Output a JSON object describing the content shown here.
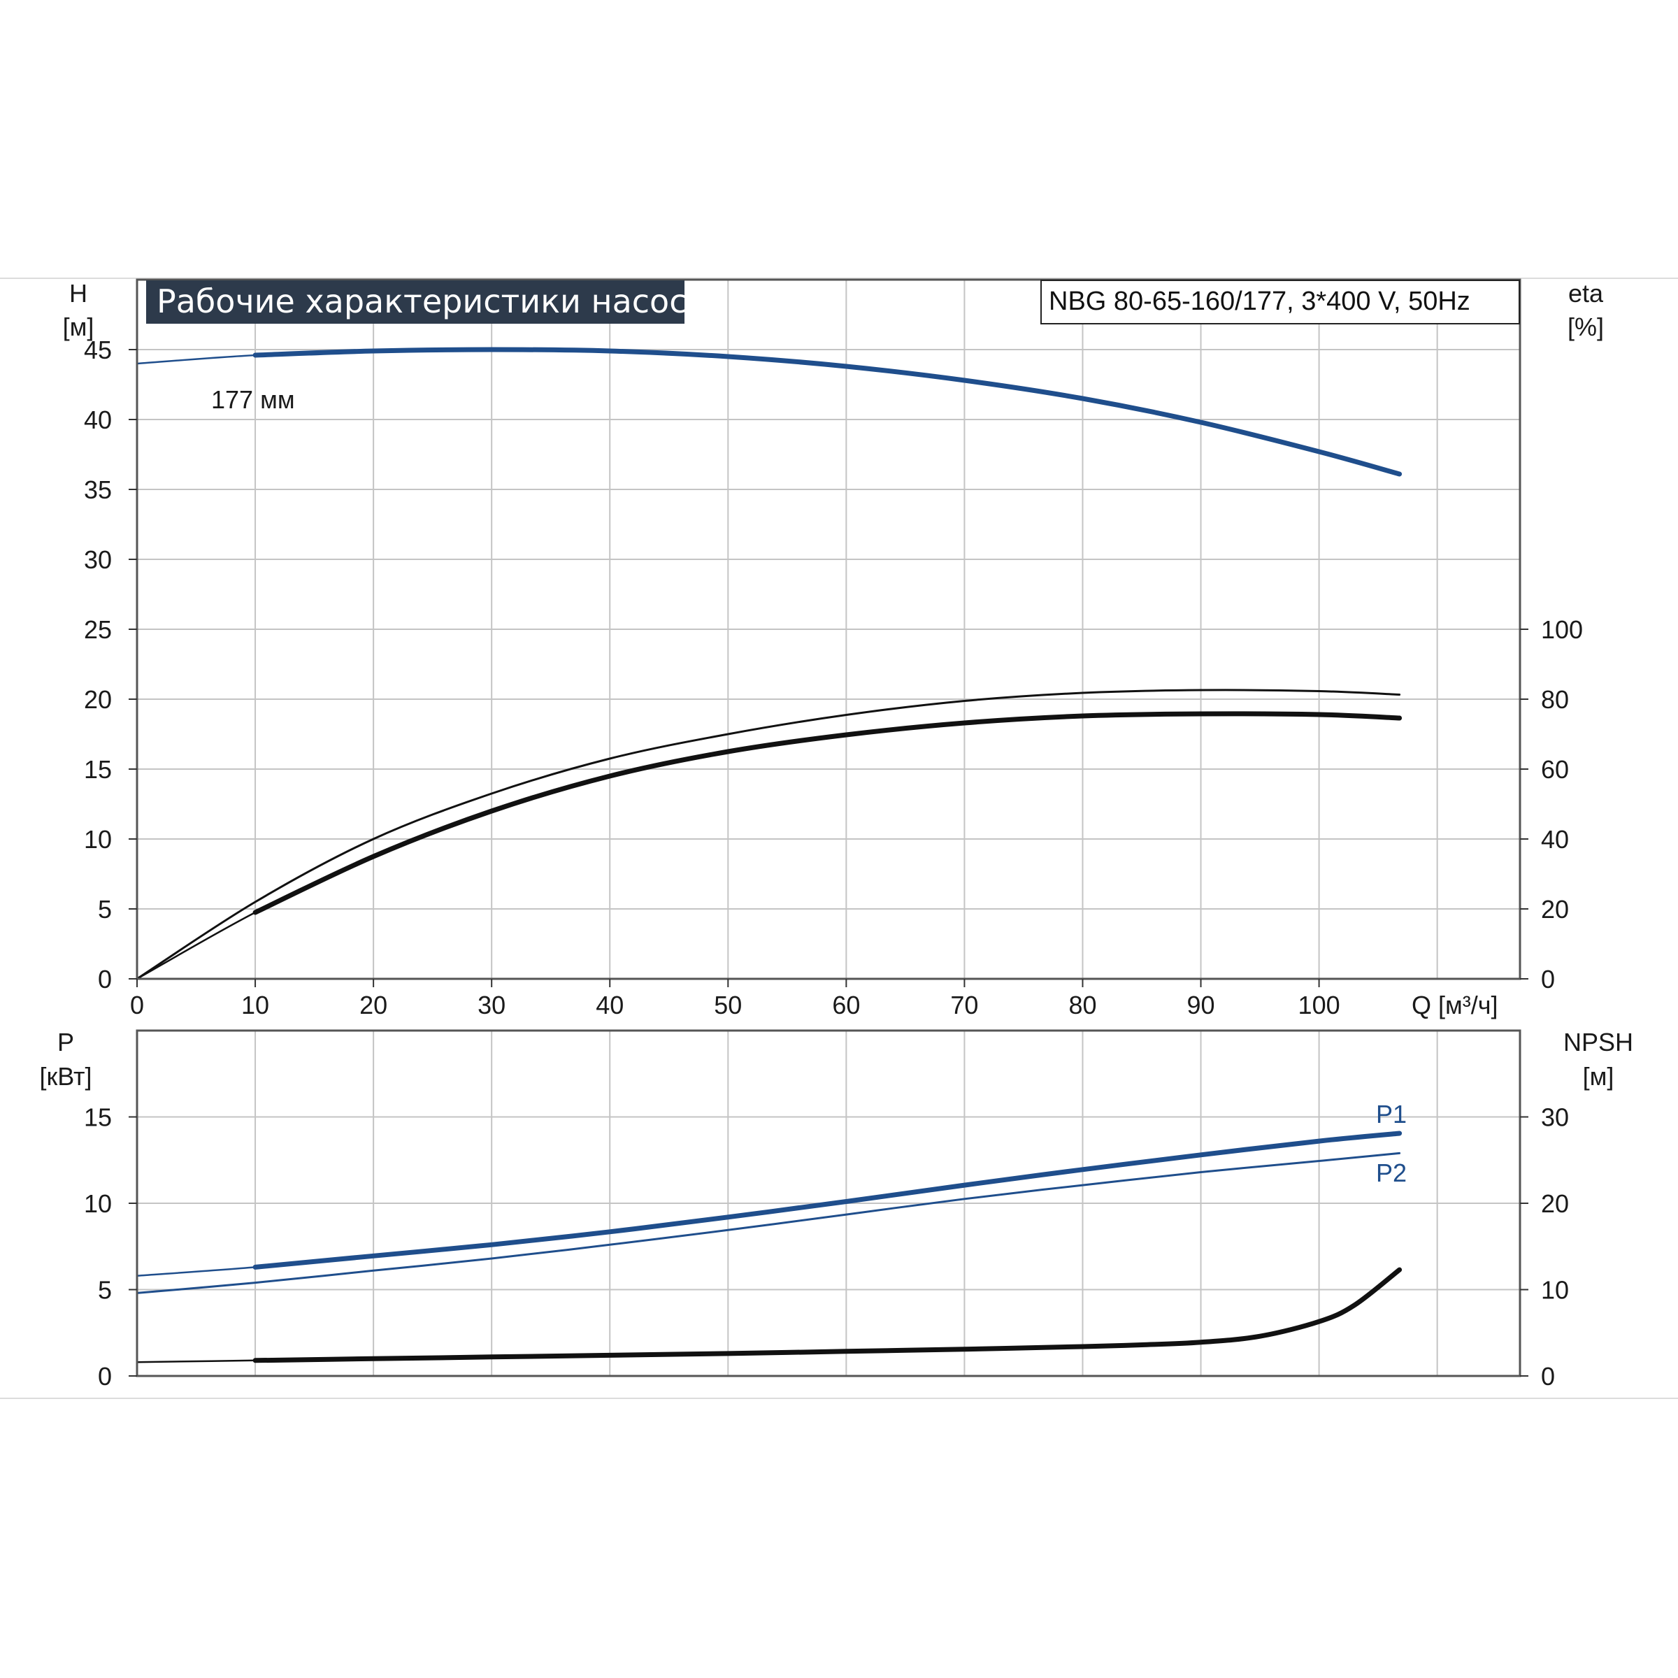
{
  "chart_data": [
    {
      "type": "line",
      "title": "Рабочие характеристики насоса",
      "model": "NBG 80-65-160/177, 3*400 V, 50Hz",
      "xlabel": "Q [м³/ч]",
      "xticks": [
        "0",
        "10",
        "20",
        "30",
        "40",
        "50",
        "60",
        "70",
        "80",
        "90",
        "100"
      ],
      "xlim": [
        0,
        117
      ],
      "ylabel_left": [
        "H",
        "[м]"
      ],
      "yticks_left": [
        "0",
        "5",
        "10",
        "15",
        "20",
        "25",
        "30",
        "35",
        "40",
        "45"
      ],
      "ylim_left": [
        0,
        50
      ],
      "ylabel_right": [
        "eta",
        "[%]"
      ],
      "yticks_right": [
        "0",
        "20",
        "40",
        "60",
        "80",
        "100"
      ],
      "ylim_right": [
        0,
        200
      ],
      "grid": true,
      "annotation": "177 мм",
      "series": [
        {
          "name": "",
          "axis": "left",
          "color": "#1f4e8c",
          "x": [
            0,
            10,
            20,
            30,
            40,
            50,
            60,
            70,
            80,
            90,
            100,
            106.8
          ],
          "y": [
            44.0,
            44.6,
            44.9,
            45.0,
            44.9,
            44.5,
            43.8,
            42.8,
            41.5,
            39.8,
            37.7,
            36.1
          ],
          "solid_from": 10
        },
        {
          "name": "",
          "axis": "right",
          "color": "#111111",
          "x": [
            0,
            10,
            20,
            30,
            40,
            50,
            60,
            70,
            80,
            90,
            100,
            106.8
          ],
          "y": [
            0,
            22,
            40,
            53,
            63,
            70,
            75.5,
            79.5,
            81.8,
            82.6,
            82.3,
            81.3
          ],
          "style": "thin"
        },
        {
          "name": "",
          "axis": "right",
          "color": "#111111",
          "x": [
            0,
            10,
            20,
            30,
            40,
            50,
            60,
            70,
            80,
            90,
            100,
            106.8
          ],
          "y": [
            0,
            19,
            35,
            48,
            58,
            65,
            69.8,
            73.2,
            75.2,
            75.8,
            75.6,
            74.6
          ],
          "solid_from": 10
        }
      ]
    },
    {
      "type": "line",
      "ylabel_left": [
        "P",
        "[кВт]"
      ],
      "yticks_left": [
        "0",
        "5",
        "10",
        "15"
      ],
      "ylim_left": [
        0,
        20
      ],
      "ylabel_right": [
        "NPSH",
        "[м]"
      ],
      "yticks_right": [
        "0",
        "10",
        "20",
        "30"
      ],
      "ylim_right": [
        0,
        40
      ],
      "xlim": [
        0,
        117
      ],
      "grid": true,
      "series": [
        {
          "name": "P1",
          "axis": "left",
          "color": "#1f4e8c",
          "x": [
            0,
            10,
            20,
            30,
            40,
            50,
            60,
            70,
            80,
            90,
            100,
            106.8
          ],
          "y": [
            5.8,
            6.3,
            6.95,
            7.6,
            8.35,
            9.2,
            10.1,
            11.05,
            11.95,
            12.8,
            13.6,
            14.05
          ],
          "solid_from": 10
        },
        {
          "name": "P2",
          "axis": "left",
          "color": "#1f4e8c",
          "x": [
            0,
            10,
            20,
            30,
            40,
            50,
            60,
            70,
            80,
            90,
            100,
            106.8
          ],
          "y": [
            4.8,
            5.4,
            6.1,
            6.8,
            7.6,
            8.45,
            9.35,
            10.25,
            11.05,
            11.8,
            12.45,
            12.9
          ],
          "style": "thin"
        },
        {
          "name": "",
          "axis": "right",
          "color": "#111111",
          "x": [
            0,
            10,
            20,
            30,
            40,
            50,
            60,
            70,
            80,
            85,
            90,
            95,
            100,
            103,
            106.8
          ],
          "y": [
            1.6,
            1.8,
            2.0,
            2.2,
            2.4,
            2.6,
            2.85,
            3.1,
            3.4,
            3.6,
            3.9,
            4.6,
            6.3,
            8.2,
            12.3
          ],
          "solid_from": 10
        }
      ]
    }
  ]
}
